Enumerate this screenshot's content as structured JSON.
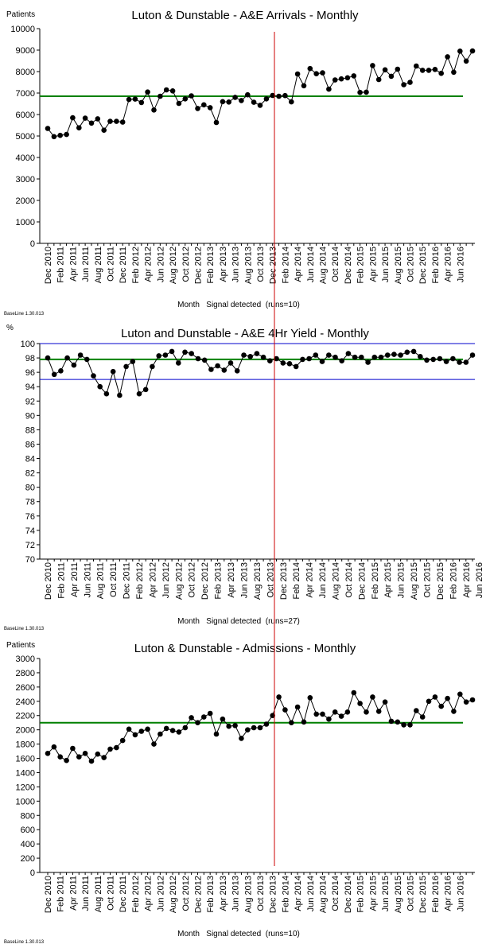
{
  "colors": {
    "mean": "#008000",
    "limit": "#0000cc",
    "marker": "#cc0000",
    "point": "#000000"
  },
  "x_tick_labels": [
    "Dec 2010",
    "Feb 2011",
    "Apr 2011",
    "Jun 2011",
    "Aug 2011",
    "Oct 2011",
    "Dec 2011",
    "Feb 2012",
    "Apr 2012",
    "Jun 2012",
    "Aug 2012",
    "Oct 2012",
    "Dec 2012",
    "Feb 2013",
    "Apr 2013",
    "Jun 2013",
    "Aug 2013",
    "Oct 2013",
    "Dec 2013",
    "Feb 2014",
    "Apr 2014",
    "Jun 2014",
    "Aug 2014",
    "Oct 2014",
    "Dec 2014",
    "Feb 2015",
    "Apr 2015",
    "Jun 2015",
    "Aug 2015",
    "Oct 2015",
    "Dec 2015",
    "Feb 2016",
    "Apr 2016",
    "Jun 2016"
  ],
  "chart_data": [
    {
      "type": "line",
      "title": "Luton & Dunstable - A&E Arrivals - Monthly",
      "ylabel": "Patients",
      "xlabel": "Month   Signal detected  (runs=10)",
      "footer": "BaseLine 1.30.013",
      "ylim": [
        0,
        10000
      ],
      "yticks": [
        0,
        1000,
        2000,
        3000,
        4000,
        5000,
        6000,
        7000,
        8000,
        9000,
        10000
      ],
      "mean": 6850,
      "series": [
        {
          "values": [
            5350,
            4970,
            5030,
            5070,
            5850,
            5380,
            5830,
            5600,
            5800,
            5270,
            5680,
            5680,
            5650,
            6700,
            6720,
            6560,
            7050,
            6210,
            6850,
            7150,
            7100,
            6520,
            6730,
            6870,
            6280,
            6450,
            6320,
            5630,
            6600,
            6580,
            6800,
            6650,
            6920,
            6570,
            6430,
            6730,
            6890,
            6850,
            6880,
            6590,
            7890,
            7340,
            8140,
            7900,
            7940,
            7180,
            7610,
            7660,
            7710,
            7800,
            7030,
            7040,
            8280,
            7630,
            8080,
            7780,
            8110,
            7390,
            7500,
            8260,
            8060,
            8060,
            8100,
            7920,
            8690,
            7970,
            8950,
            8490,
            8960
          ]
        }
      ]
    },
    {
      "type": "line",
      "title": "Luton and Dunstable - A&E 4Hr Yield - Monthly",
      "ylabel": "%",
      "xlabel": "Month   Signal detected  (runs=27)",
      "footer": "BaseLine 1.30.013",
      "ylim": [
        70,
        100
      ],
      "yticks": [
        70,
        72,
        74,
        76,
        78,
        80,
        82,
        84,
        86,
        88,
        90,
        92,
        94,
        96,
        98,
        100
      ],
      "mean": 97.8,
      "upper_limit": 100,
      "lower_limit": 95,
      "series": [
        {
          "values": [
            98.0,
            95.7,
            96.2,
            98.0,
            97.0,
            98.4,
            97.8,
            95.5,
            94.0,
            93.0,
            96.1,
            92.8,
            96.8,
            97.5,
            93.0,
            93.6,
            96.8,
            98.3,
            98.4,
            98.9,
            97.3,
            98.8,
            98.6,
            97.9,
            97.7,
            96.4,
            96.9,
            96.3,
            97.3,
            96.2,
            98.4,
            98.2,
            98.6,
            98.1,
            97.6,
            97.9,
            97.3,
            97.2,
            96.8,
            97.8,
            97.9,
            98.4,
            97.5,
            98.4,
            98.1,
            97.6,
            98.6,
            98.1,
            98.1,
            97.4,
            98.1,
            98.1,
            98.4,
            98.5,
            98.4,
            98.8,
            98.9,
            98.2,
            97.7,
            97.8,
            97.9,
            97.5,
            97.9,
            97.4,
            97.4,
            98.4
          ]
        }
      ]
    },
    {
      "type": "line",
      "title": "Luton & Dunstable - Admissions - Monthly",
      "ylabel": "Patients",
      "xlabel": "Month   Signal detected  (runs=10)",
      "footer": "BaseLine 1.30.013",
      "ylim": [
        0,
        3000
      ],
      "yticks": [
        0,
        200,
        400,
        600,
        800,
        1000,
        1200,
        1400,
        1600,
        1800,
        2000,
        2200,
        2400,
        2600,
        2800,
        3000
      ],
      "mean": 2100,
      "series": [
        {
          "values": [
            1670,
            1760,
            1620,
            1570,
            1740,
            1620,
            1670,
            1560,
            1660,
            1610,
            1730,
            1750,
            1850,
            2010,
            1930,
            1980,
            2010,
            1800,
            1940,
            2020,
            1990,
            1970,
            2030,
            2170,
            2100,
            2180,
            2230,
            1940,
            2150,
            2050,
            2060,
            1880,
            2000,
            2030,
            2030,
            2080,
            2200,
            2460,
            2280,
            2100,
            2320,
            2110,
            2450,
            2220,
            2220,
            2150,
            2250,
            2190,
            2250,
            2520,
            2370,
            2250,
            2460,
            2260,
            2390,
            2120,
            2110,
            2070,
            2070,
            2270,
            2180,
            2400,
            2460,
            2330,
            2440,
            2260,
            2500,
            2390,
            2420
          ]
        }
      ]
    }
  ]
}
